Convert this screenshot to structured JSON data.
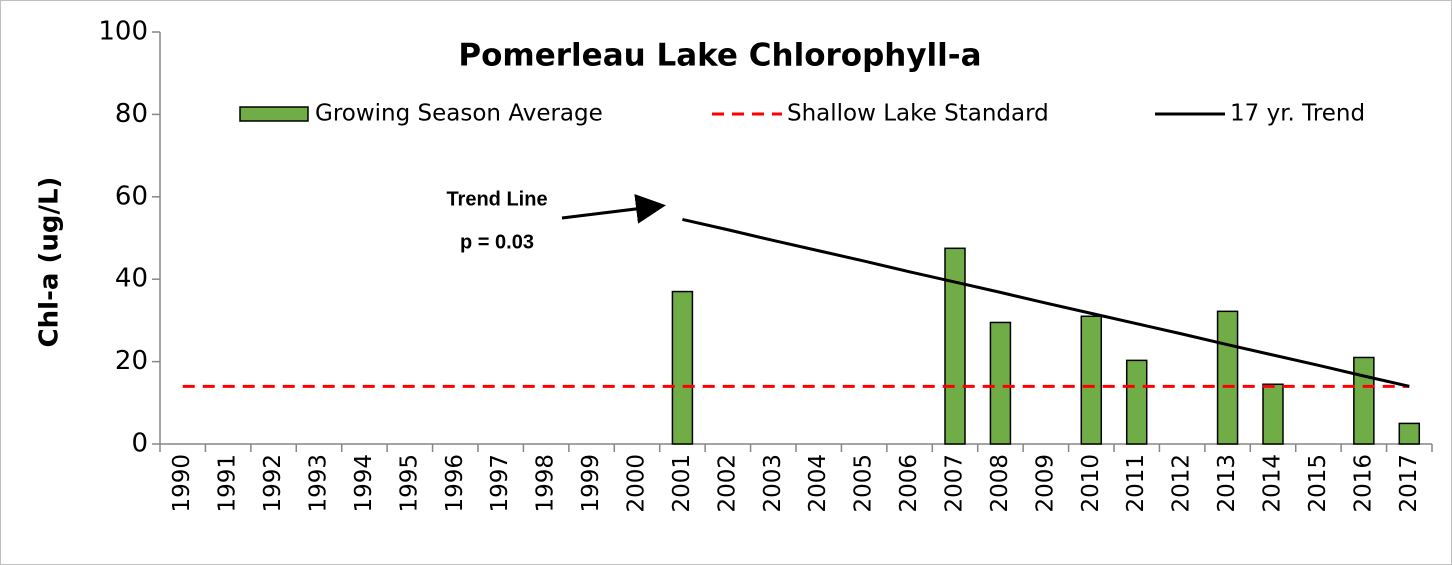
{
  "chart_data": {
    "type": "bar",
    "title": "Pomerleau Lake Chlorophyll-a",
    "ylabel": "Chl-a (ug/L)",
    "categories": [
      "1990",
      "1991",
      "1992",
      "1993",
      "1994",
      "1995",
      "1996",
      "1997",
      "1998",
      "1999",
      "2000",
      "2001",
      "2002",
      "2003",
      "2004",
      "2005",
      "2006",
      "2007",
      "2008",
      "2009",
      "2010",
      "2011",
      "2012",
      "2013",
      "2014",
      "2015",
      "2016",
      "2017"
    ],
    "series": [
      {
        "name": "Growing Season Average",
        "type": "bar",
        "color": "#70ad47",
        "values": [
          null,
          null,
          null,
          null,
          null,
          null,
          null,
          null,
          null,
          null,
          null,
          37,
          null,
          null,
          null,
          null,
          null,
          47.5,
          29.5,
          null,
          31,
          20.3,
          null,
          32.2,
          14.5,
          null,
          21,
          5
        ]
      },
      {
        "name": "Shallow Lake Standard",
        "type": "line",
        "style": "dashed",
        "color": "#ff0000",
        "values": [
          14,
          14,
          14,
          14,
          14,
          14,
          14,
          14,
          14,
          14,
          14,
          14,
          14,
          14,
          14,
          14,
          14,
          14,
          14,
          14,
          14,
          14,
          14,
          14,
          14,
          14,
          14,
          14
        ]
      },
      {
        "name": "17 yr. Trend",
        "type": "line",
        "style": "solid",
        "color": "#000000",
        "values": [
          null,
          null,
          null,
          null,
          null,
          null,
          null,
          null,
          null,
          null,
          null,
          54.5,
          52,
          49.4,
          46.9,
          44.4,
          41.8,
          39.3,
          36.8,
          34.2,
          31.7,
          29.2,
          26.7,
          24.1,
          21.6,
          19.1,
          16.5,
          14
        ]
      }
    ],
    "annotations": [
      "Trend Line",
      "p = 0.03"
    ],
    "ylim": [
      0,
      100
    ],
    "yticks": [
      0,
      20,
      40,
      60,
      80,
      100
    ],
    "grid": false
  }
}
